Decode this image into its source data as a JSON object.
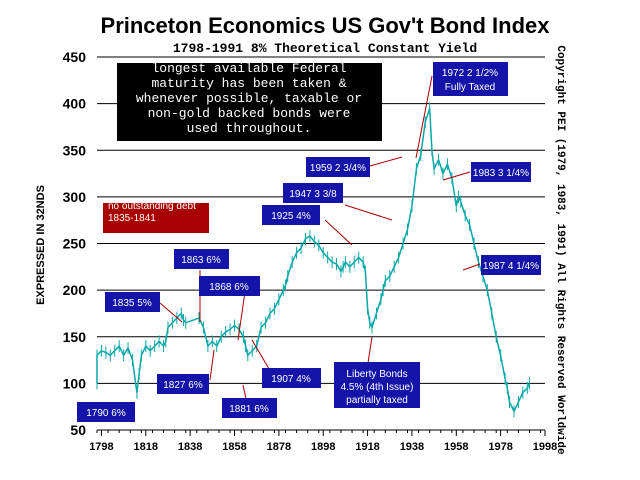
{
  "chart_data": {
    "type": "line",
    "title": "Princeton Economics US Gov't Bond Index",
    "subtitle": "1798-1991 8% Theoretical Constant Yield",
    "ylabel": "EXPRESSED IN 32NDS",
    "copyright": "Copyright PEI (1979, 1983, 1991) All Rights Reserved Worldwide",
    "ylim": [
      50,
      450
    ],
    "xlim": [
      1796,
      1998
    ],
    "y_ticks": [
      50,
      100,
      150,
      200,
      250,
      300,
      350,
      400,
      450
    ],
    "x_ticks": [
      1798,
      1818,
      1838,
      1858,
      1878,
      1898,
      1918,
      1938,
      1958,
      1978,
      1998
    ],
    "grid": true,
    "series": [
      {
        "x": [
          1790,
          1792,
          1794,
          1796,
          1798,
          1800,
          1802,
          1804,
          1806,
          1808,
          1810,
          1812,
          1814,
          1815,
          1816,
          1818,
          1820,
          1822,
          1824,
          1826,
          1827,
          1828,
          1830,
          1832,
          1834,
          1835,
          1836,
          1842,
          1844,
          1846,
          1848,
          1850,
          1852,
          1854,
          1856,
          1858,
          1860,
          1862,
          1863,
          1864,
          1866,
          1868,
          1870,
          1872,
          1874,
          1876,
          1878,
          1880,
          1881,
          1882,
          1884,
          1886,
          1888,
          1890,
          1892,
          1894,
          1896,
          1898,
          1900,
          1902,
          1904,
          1906,
          1907,
          1908,
          1910,
          1912,
          1914,
          1916,
          1917,
          1918,
          1919,
          1920,
          1922,
          1924,
          1925,
          1926,
          1928,
          1930,
          1932,
          1934,
          1936,
          1938,
          1940,
          1942,
          1944,
          1946,
          1947,
          1948,
          1950,
          1952,
          1954,
          1956,
          1958,
          1959,
          1960,
          1962,
          1964,
          1966,
          1968,
          1970,
          1972,
          1974,
          1976,
          1978,
          1980,
          1981,
          1982,
          1984,
          1986,
          1988,
          1990,
          1991
        ],
        "values": [
          100,
          110,
          120,
          130,
          135,
          133,
          130,
          135,
          140,
          130,
          138,
          125,
          90,
          110,
          130,
          140,
          135,
          140,
          145,
          140,
          145,
          160,
          165,
          170,
          175,
          168,
          165,
          170,
          160,
          140,
          145,
          140,
          150,
          155,
          158,
          162,
          158,
          150,
          140,
          130,
          135,
          140,
          160,
          165,
          175,
          180,
          190,
          200,
          205,
          215,
          230,
          240,
          245,
          255,
          258,
          252,
          248,
          240,
          235,
          230,
          228,
          220,
          225,
          230,
          225,
          230,
          235,
          230,
          220,
          180,
          165,
          160,
          175,
          190,
          200,
          210,
          215,
          225,
          235,
          250,
          265,
          290,
          330,
          345,
          380,
          395,
          350,
          330,
          340,
          325,
          335,
          320,
          290,
          300,
          295,
          280,
          270,
          250,
          230,
          215,
          200,
          175,
          150,
          130,
          105,
          95,
          80,
          70,
          80,
          90,
          95,
          100
        ]
      }
    ],
    "annotations": [
      "longest available Federal maturity has been taken & whenever possible, taxable or non-gold backed bonds were used throughout.",
      "no outstanding debt 1835-1841",
      "1790 6%",
      "1827 6%",
      "1835 5%",
      "1863 6%",
      "1868 6%",
      "1881 6%",
      "1907 4%",
      "1925 4%",
      "1947 3 3/8",
      "1959 2 3/4%",
      "1972 2 1/2%",
      "Fully Taxed",
      "1983 3 1/4%",
      "1987 4 1/4%",
      "Liberty Bonds",
      "4.5% (4th Issue)",
      "partially taxed"
    ]
  },
  "colors": {
    "series": "#0aa8a8",
    "label_box": "#1414a8",
    "red_box": "#a80000",
    "note_box": "#000000",
    "leader": "#a80000",
    "grid": "#000000"
  }
}
